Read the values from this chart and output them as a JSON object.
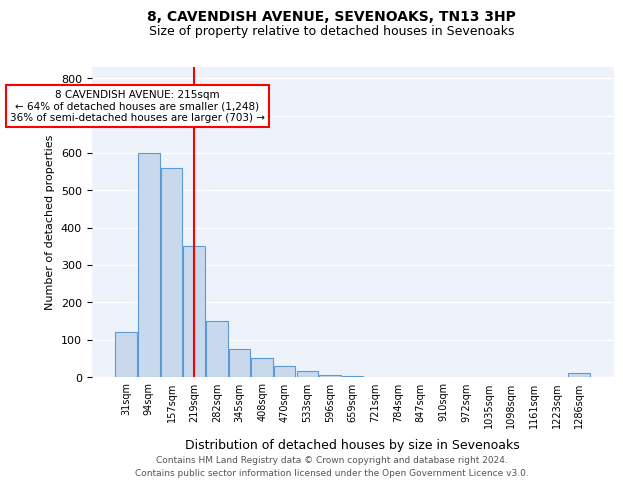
{
  "title1": "8, CAVENDISH AVENUE, SEVENOAKS, TN13 3HP",
  "title2": "Size of property relative to detached houses in Sevenoaks",
  "xlabel": "Distribution of detached houses by size in Sevenoaks",
  "ylabel": "Number of detached properties",
  "categories": [
    "31sqm",
    "94sqm",
    "157sqm",
    "219sqm",
    "282sqm",
    "345sqm",
    "408sqm",
    "470sqm",
    "533sqm",
    "596sqm",
    "659sqm",
    "721sqm",
    "784sqm",
    "847sqm",
    "910sqm",
    "972sqm",
    "1035sqm",
    "1098sqm",
    "1161sqm",
    "1223sqm",
    "1286sqm"
  ],
  "values": [
    120,
    600,
    560,
    350,
    150,
    75,
    50,
    30,
    15,
    5,
    2,
    1,
    1,
    0,
    0,
    0,
    0,
    0,
    0,
    0,
    12
  ],
  "bar_color": "#c9d9ed",
  "bar_edge_color": "#5b9bd5",
  "red_line_index": 3,
  "annotation_text": "8 CAVENDISH AVENUE: 215sqm\n← 64% of detached houses are smaller (1,248)\n36% of semi-detached houses are larger (703) →",
  "annotation_box_color": "white",
  "annotation_box_edge_color": "red",
  "red_line_color": "red",
  "ylim": [
    0,
    830
  ],
  "yticks": [
    0,
    100,
    200,
    300,
    400,
    500,
    600,
    700,
    800
  ],
  "background_color": "#eef3fb",
  "grid_color": "white",
  "footer1": "Contains HM Land Registry data © Crown copyright and database right 2024.",
  "footer2": "Contains public sector information licensed under the Open Government Licence v3.0."
}
